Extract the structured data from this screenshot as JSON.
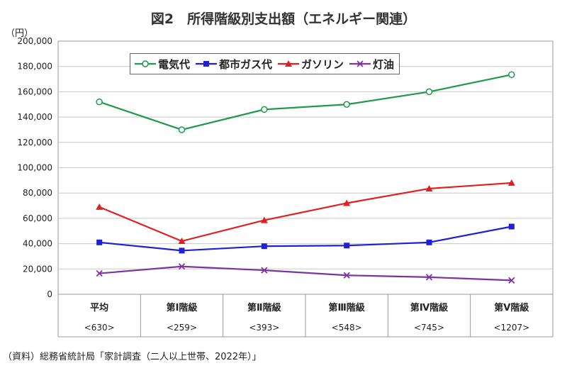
{
  "title": "図2　所得階級別支出額（エネルギー関連）",
  "unit_label": "（円）",
  "source_note": "（資料）総務省統計局「家計調査（二人以上世帯、2022年）」",
  "chart_data": {
    "type": "line",
    "title": "図2　所得階級別支出額（エネルギー関連）",
    "ylabel": "（円）",
    "ylim": [
      0,
      200000
    ],
    "y_ticks": [
      "0",
      "20,000",
      "40,000",
      "60,000",
      "80,000",
      "100,000",
      "120,000",
      "140,000",
      "160,000",
      "180,000",
      "200,000"
    ],
    "y_tick_values": [
      0,
      20000,
      40000,
      60000,
      80000,
      100000,
      120000,
      140000,
      160000,
      180000,
      200000
    ],
    "categories": [
      "平均",
      "第Ⅰ階級",
      "第Ⅱ階級",
      "第Ⅲ階級",
      "第Ⅳ階級",
      "第Ⅴ階級"
    ],
    "category_sublabels": [
      "<630>",
      "<259>",
      "<393>",
      "<548>",
      "<745>",
      "<1207>"
    ],
    "grid": true,
    "legend_position": "top-left",
    "series": [
      {
        "name": "電気代",
        "color": "#1e9b4a",
        "marker": "circle-open",
        "values": [
          152000,
          130000,
          146000,
          150000,
          160000,
          173500
        ]
      },
      {
        "name": "都市ガス代",
        "color": "#1f1fd6",
        "marker": "square",
        "values": [
          41000,
          34500,
          38000,
          38500,
          41000,
          53500
        ]
      },
      {
        "name": "ガソリン",
        "color": "#e02020",
        "marker": "triangle",
        "values": [
          69000,
          42000,
          58500,
          72000,
          83500,
          88000
        ]
      },
      {
        "name": "灯油",
        "color": "#7a35a0",
        "marker": "x",
        "values": [
          16500,
          22000,
          19000,
          15000,
          13500,
          11000
        ]
      }
    ]
  }
}
